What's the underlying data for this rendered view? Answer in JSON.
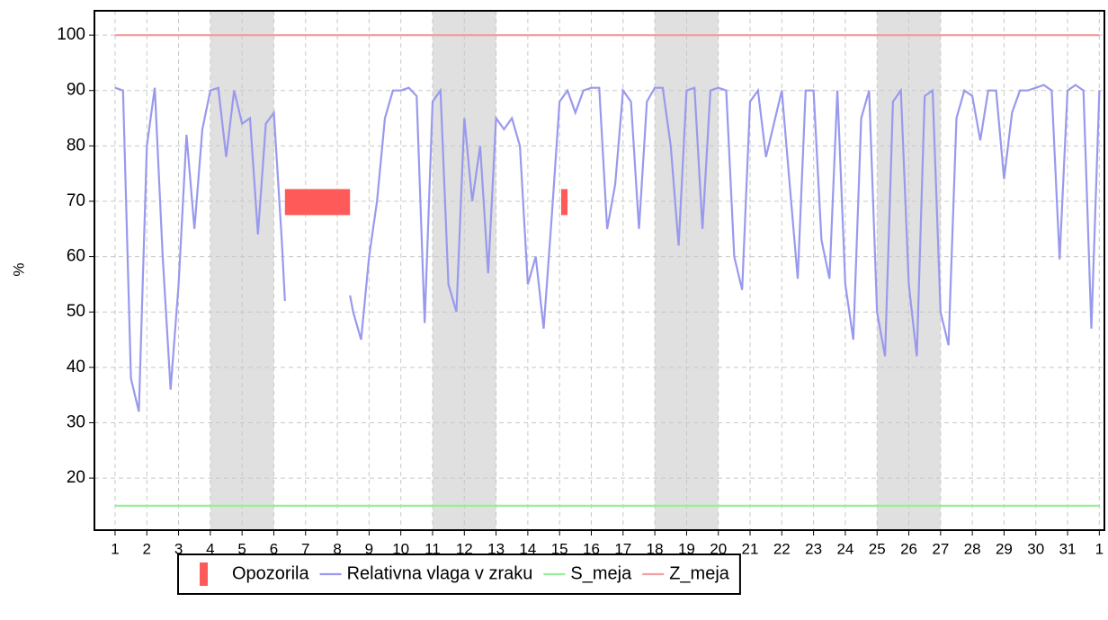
{
  "chart_data": {
    "type": "line",
    "ylabel": "%",
    "xlim": [
      0.35,
      32.16
    ],
    "ylim": [
      10.6,
      104.4
    ],
    "xticks": [
      1,
      2,
      3,
      4,
      5,
      6,
      7,
      8,
      9,
      10,
      11,
      12,
      13,
      14,
      15,
      16,
      17,
      18,
      19,
      20,
      21,
      22,
      23,
      24,
      25,
      26,
      27,
      28,
      29,
      30,
      31,
      {
        "value": 32,
        "label": "1"
      }
    ],
    "yticks": [
      20,
      30,
      40,
      50,
      60,
      70,
      80,
      90,
      100
    ],
    "grid": true,
    "shade_color": "#e0e0e0",
    "shaded_ranges": [
      [
        4,
        6
      ],
      [
        11,
        13
      ],
      [
        18,
        20
      ],
      [
        25,
        27
      ]
    ],
    "alerts": {
      "name": "Opozorila",
      "color": "#ff5a5a",
      "ranges": [
        {
          "x": [
            6.35,
            8.4
          ],
          "y": [
            67.5,
            72.2
          ]
        },
        {
          "x": [
            15.05,
            15.25
          ],
          "y": [
            67.5,
            72.2
          ]
        }
      ]
    },
    "series": [
      {
        "name": "Relativna vlaga v zraku",
        "color": "#9999ee",
        "x": [
          1,
          1.25,
          1.5,
          1.75,
          2,
          2.25,
          2.5,
          2.75,
          3,
          3.25,
          3.5,
          3.75,
          4,
          4.25,
          4.5,
          4.75,
          5,
          5.25,
          5.5,
          5.75,
          6,
          6.25,
          6.35,
          6.5,
          8.4,
          8.5,
          8.75,
          9,
          9.25,
          9.5,
          9.75,
          10,
          10.25,
          10.5,
          10.75,
          11,
          11.25,
          11.5,
          11.75,
          12,
          12.25,
          12.5,
          12.75,
          13,
          13.25,
          13.5,
          13.75,
          14,
          14.25,
          14.5,
          14.75,
          15,
          15.25,
          15.5,
          15.75,
          16,
          16.25,
          16.5,
          16.75,
          17,
          17.25,
          17.5,
          17.75,
          18,
          18.25,
          18.5,
          18.75,
          19,
          19.25,
          19.5,
          19.75,
          20,
          20.25,
          20.5,
          20.75,
          21,
          21.25,
          21.5,
          21.75,
          22,
          22.25,
          22.5,
          22.75,
          23,
          23.25,
          23.5,
          23.75,
          24,
          24.25,
          24.5,
          24.75,
          25,
          25.25,
          25.5,
          25.75,
          26,
          26.25,
          26.5,
          26.75,
          27,
          27.25,
          27.5,
          27.75,
          28,
          28.25,
          28.5,
          28.75,
          29,
          29.25,
          29.5,
          29.75,
          30,
          30.25,
          30.5,
          30.75,
          31,
          31.25,
          31.5,
          31.75,
          32
        ],
        "values": [
          90.5,
          90,
          38,
          32,
          80,
          90.5,
          60,
          36,
          55,
          82,
          65,
          83,
          90,
          90.5,
          78,
          90,
          84,
          85,
          64,
          84,
          86,
          63,
          52,
          null,
          53,
          50,
          45,
          60,
          70,
          85,
          90,
          90,
          90.5,
          89,
          48,
          88,
          90,
          55,
          50,
          85,
          70,
          80,
          57,
          85,
          83,
          85,
          80,
          55,
          60,
          47,
          67,
          88,
          90,
          86,
          90,
          90.5,
          90.5,
          65,
          73,
          90,
          88,
          65,
          88,
          90.5,
          90.5,
          80,
          62,
          90,
          90.5,
          65,
          90,
          90.5,
          90,
          60,
          54,
          88,
          90,
          78,
          84,
          90,
          73,
          56,
          90,
          90,
          63,
          56,
          90,
          55,
          45,
          85,
          90,
          50,
          42,
          88,
          90,
          55,
          42,
          89,
          90,
          50,
          44,
          85,
          90,
          89,
          81,
          90,
          90,
          74,
          86,
          90,
          90,
          90.5,
          91,
          90,
          59.5,
          90,
          91,
          90,
          47,
          90
        ]
      },
      {
        "name": "S_meja",
        "color": "#99ee99",
        "x": [
          1,
          32
        ],
        "values": [
          15,
          15
        ]
      },
      {
        "name": "Z_meja",
        "color": "#f0a0a0",
        "x": [
          1,
          32
        ],
        "values": [
          100,
          100
        ]
      }
    ]
  }
}
